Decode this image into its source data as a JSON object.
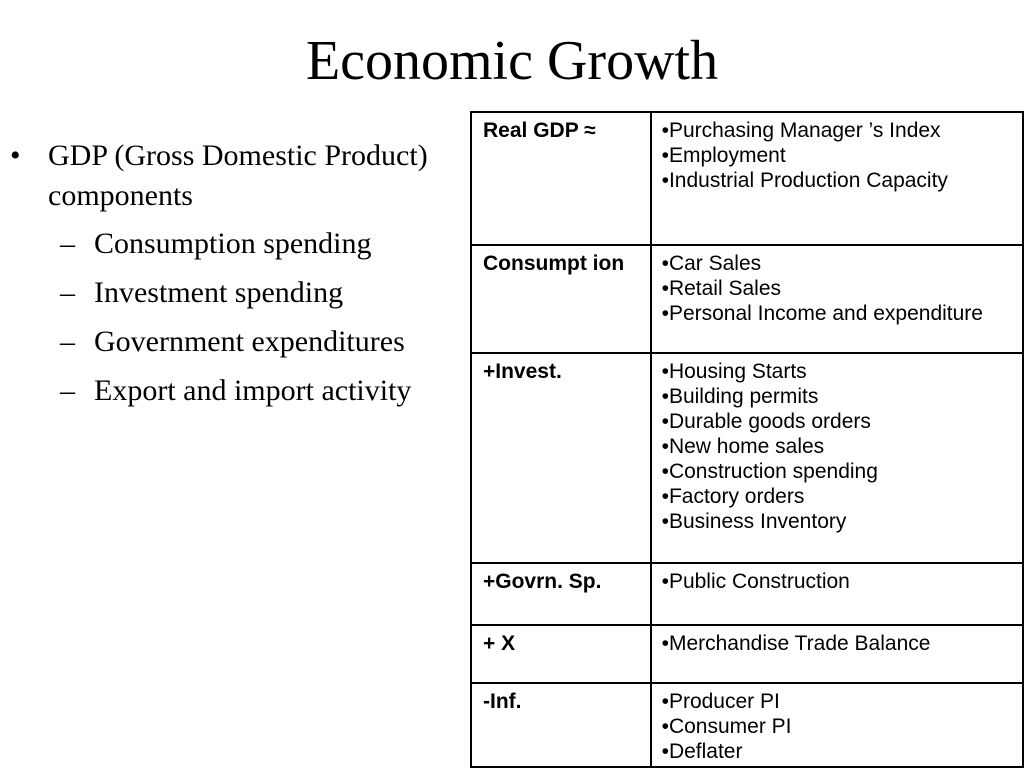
{
  "title": "Economic Growth",
  "bullets": {
    "main": "GDP (Gross Domestic Product) components",
    "main_marker": "•",
    "sub_marker": "–",
    "sub": [
      "Consumption spending",
      "Investment spending",
      "Government expenditures",
      "Export and import activity"
    ]
  },
  "table": {
    "rows": [
      {
        "category": "Real GDP ≈",
        "indicators": [
          "•Purchasing Manager ’s Index",
          "•Employment",
          "•Industrial Production Capacity"
        ]
      },
      {
        "category": "Consumpt ion",
        "indicators": [
          "•Car Sales",
          "•Retail Sales",
          "•Personal Income and expenditure"
        ]
      },
      {
        "category": "+Invest.",
        "indicators": [
          "•Housing Starts",
          "•Building permits",
          "•Durable goods orders",
          "•New home sales",
          "•Construction spending",
          "•Factory orders",
          "•Business Inventory"
        ]
      },
      {
        "category": "+Govrn. Sp.",
        "indicators": [
          "•Public Construction"
        ]
      },
      {
        "category": "+ X",
        "indicators": [
          "•Merchandise Trade Balance"
        ]
      },
      {
        "category": "-Inf.",
        "indicators": [
          "•Producer PI",
          "•Consumer PI",
          "•Deflater"
        ]
      }
    ]
  }
}
